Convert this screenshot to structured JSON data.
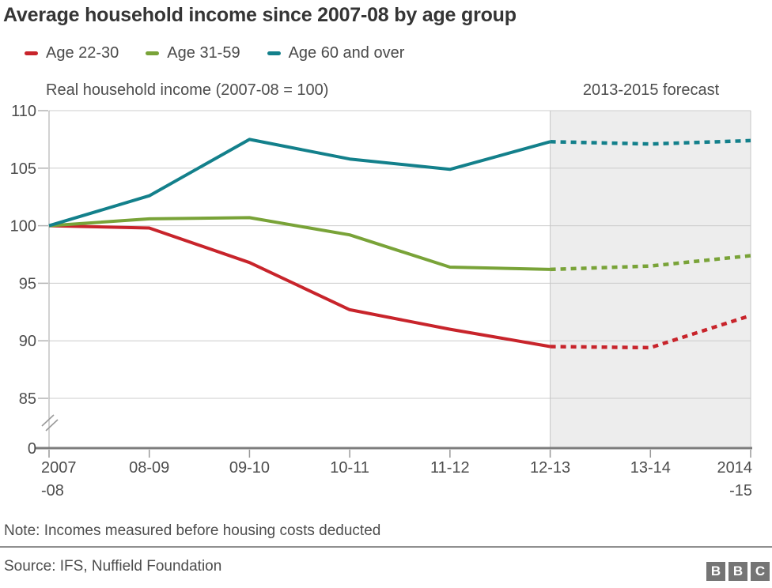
{
  "header": {
    "title": "Average household income since 2007-08 by age group"
  },
  "captions": {
    "y_axis": "Real household income (2007-08 = 100)",
    "forecast": "2013-2015 forecast"
  },
  "footer": {
    "note": "Note: Incomes measured before housing costs deducted",
    "source": "Source: IFS, Nuffield Foundation",
    "logo_letters": [
      "B",
      "B",
      "C"
    ]
  },
  "colors": {
    "series_red": "#c8242b",
    "series_green": "#79a338",
    "series_teal": "#13808b",
    "gridline": "#cccccc",
    "y_axis_line": "#b3b3b3",
    "zero_axis_line": "#7d7d7d",
    "tick": "#999999",
    "forecast_region": "#ededed",
    "forecast_border": "#c6c6c6",
    "axis_text": "#4d4d4d"
  },
  "chart_data": {
    "type": "line",
    "title": "Average household income since 2007-08 by age group",
    "y_axis_caption": "Real household income (2007-08 = 100)",
    "forecast_label": "2013-2015 forecast",
    "categories": [
      "2007-08",
      "08-09",
      "09-10",
      "10-11",
      "11-12",
      "12-13",
      "13-14",
      "2014-15"
    ],
    "x_tick_lines": [
      [
        "2007",
        "-08"
      ],
      [
        "08-09"
      ],
      [
        "09-10"
      ],
      [
        "10-11"
      ],
      [
        "11-12"
      ],
      [
        "12-13"
      ],
      [
        "13-14"
      ],
      [
        "2014",
        "-15"
      ]
    ],
    "y_ticks": [
      110,
      105,
      100,
      95,
      90,
      85
    ],
    "y_base_tick": 0,
    "ylim": [
      85,
      110
    ],
    "axis_break": true,
    "grid": "horizontal-only",
    "legend_position": "top-left",
    "forecast_start_index": 5,
    "forecast_region_shaded": true,
    "series": [
      {
        "name": "Age 22-30",
        "color": "#c8242b",
        "values": [
          100,
          99.8,
          96.8,
          92.7,
          91.0,
          89.5,
          89.4,
          92.2
        ]
      },
      {
        "name": "Age 31-59",
        "color": "#79a338",
        "values": [
          100,
          100.6,
          100.7,
          99.2,
          96.4,
          96.2,
          96.5,
          97.4
        ]
      },
      {
        "name": "Age 60 and over",
        "color": "#13808b",
        "values": [
          100,
          102.6,
          107.5,
          105.8,
          104.9,
          107.3,
          107.1,
          107.4
        ]
      }
    ]
  }
}
